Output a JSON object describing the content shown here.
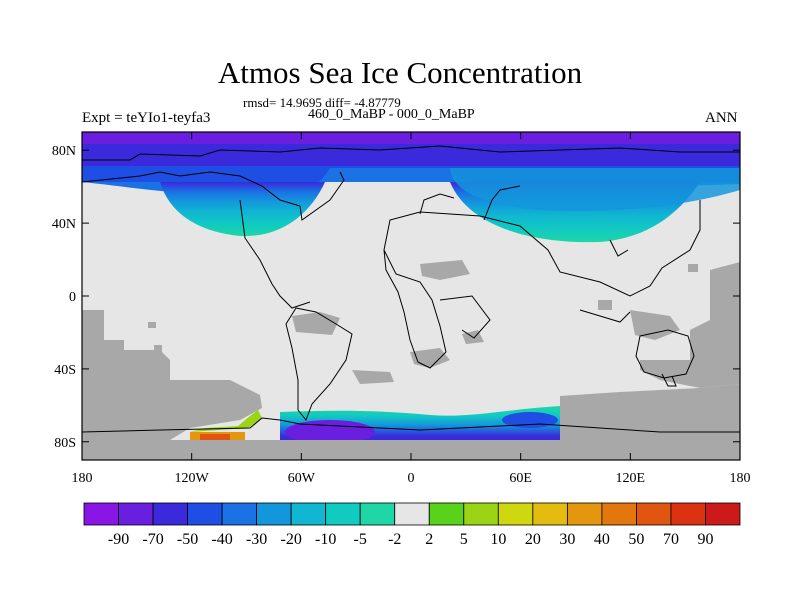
{
  "title": "Atmos Sea Ice Concentration",
  "stats": "rmsd= 14.9695 diff= -4.87779",
  "comparison": "460_0_MaBP - 000_0_MaBP",
  "experiment": "Expt = teYIo1-teyfa3",
  "season": "ANN",
  "map": {
    "projection": "cylindrical-equidistant",
    "lat_range": [
      -90,
      90
    ],
    "lon_range": [
      -180,
      180
    ],
    "lat_ticks": [
      {
        "value": 80,
        "label": "80N"
      },
      {
        "value": 40,
        "label": "40N"
      },
      {
        "value": 0,
        "label": "0"
      },
      {
        "value": -40,
        "label": "40S"
      },
      {
        "value": -80,
        "label": "80S"
      }
    ],
    "lon_ticks": [
      {
        "value": -180,
        "label": "180"
      },
      {
        "value": -120,
        "label": "120W"
      },
      {
        "value": -60,
        "label": "60W"
      },
      {
        "value": 0,
        "label": "0"
      },
      {
        "value": 60,
        "label": "60E"
      },
      {
        "value": 120,
        "label": "120E"
      },
      {
        "value": 180,
        "label": "180"
      }
    ],
    "colors": {
      "land_no_data": "#a8a8a8",
      "near_zero": "#e6e6e6",
      "outline": "#000000"
    }
  },
  "colorbar": {
    "labels": [
      "-90",
      "-70",
      "-50",
      "-40",
      "-30",
      "-20",
      "-10",
      "-5",
      "-2",
      "2",
      "5",
      "10",
      "20",
      "30",
      "40",
      "50",
      "70",
      "90"
    ],
    "colors": [
      "#8a16e6",
      "#6a1ee0",
      "#3a2adc",
      "#1e4ee4",
      "#1a72e4",
      "#1496dc",
      "#10b6d2",
      "#12cbc0",
      "#1ed6a6",
      "#e6e6e6",
      "#58d21a",
      "#9ad414",
      "#cfd80e",
      "#e4bc10",
      "#e4960e",
      "#e4760e",
      "#e05610",
      "#dc3212",
      "#cc1a1a"
    ]
  }
}
